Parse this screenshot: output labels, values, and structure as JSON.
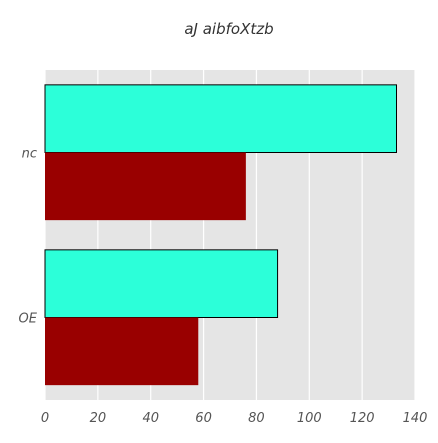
{
  "chart_data": {
    "type": "bar",
    "orientation": "horizontal",
    "title": "aJ aibfoXtzb",
    "xlabel": "",
    "ylabel": "",
    "categories": [
      "nc",
      "OE"
    ],
    "series": [
      {
        "values": [
          133,
          88
        ],
        "color": "#2cffd9"
      },
      {
        "values": [
          76,
          58
        ],
        "color": "#990000"
      }
    ],
    "xlim": [
      0,
      140
    ],
    "xticks": [
      0,
      20,
      40,
      60,
      80,
      100,
      120,
      140
    ],
    "grid": true,
    "background": "#e5e5e5"
  }
}
